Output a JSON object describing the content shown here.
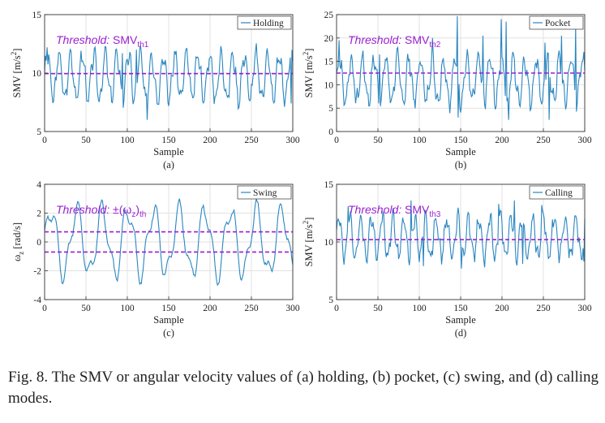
{
  "caption": "Fig. 8.   The SMV or angular velocity values of (a) holding, (b) pocket, (c) swing, and (d) calling modes.",
  "colors": {
    "series": "#2a86c0",
    "threshold": "#9a1fd1",
    "axis": "#333333"
  },
  "chart_data": [
    {
      "type": "line",
      "panel_label": "(a)",
      "legend": "Holding",
      "xlabel": "Sample",
      "ylabel_main": "SMV [m/s",
      "ylabel_sup": "2",
      "ylabel_end": "]",
      "xlim": [
        0,
        300
      ],
      "ylim": [
        5,
        15
      ],
      "xticks": [
        0,
        50,
        100,
        150,
        200,
        250,
        300
      ],
      "yticks": [
        5,
        10,
        15
      ],
      "threshold_prefix": "Threshold:",
      "threshold_label": "SMV",
      "threshold_sub": "th1",
      "thresholds": [
        9.95
      ],
      "signal": {
        "mean": 9.7,
        "amp": 1.9,
        "period": 14,
        "noise": 0.45,
        "seed": 3,
        "spikes": [
          [
            3,
            12.2
          ],
          [
            94,
            11.7
          ],
          [
            111,
            12.0
          ],
          [
            124,
            6.0
          ],
          [
            298,
            7.4
          ]
        ]
      }
    },
    {
      "type": "line",
      "panel_label": "(b)",
      "legend": "Pocket",
      "xlabel": "Sample",
      "ylabel_main": "SMV [m/s",
      "ylabel_sup": "2",
      "ylabel_end": "]",
      "xlim": [
        0,
        300
      ],
      "ylim": [
        0,
        25
      ],
      "xticks": [
        0,
        50,
        100,
        150,
        200,
        250,
        300
      ],
      "yticks": [
        0,
        5,
        10,
        15,
        20,
        25
      ],
      "threshold_prefix": "Threshold:",
      "threshold_label": "SMV",
      "threshold_sub": "th2",
      "thresholds": [
        12.5
      ],
      "signal": {
        "mean": 11.0,
        "amp": 4.5,
        "period": 14,
        "noise": 1.3,
        "seed": 7,
        "spikes": [
          [
            3,
            19.5
          ],
          [
            52,
            16.5
          ],
          [
            116,
            20.0
          ],
          [
            146,
            24.7
          ],
          [
            177,
            20.5
          ],
          [
            199,
            24.0
          ],
          [
            205,
            23.5
          ],
          [
            252,
            19.0
          ],
          [
            272,
            20.5
          ],
          [
            289,
            22.5
          ],
          [
            147,
            3.0
          ],
          [
            208,
            2.5
          ],
          [
            257,
            2.5
          ]
        ]
      }
    },
    {
      "type": "line",
      "panel_label": "(c)",
      "legend": "Swing",
      "xlabel": "Sample",
      "ylabel_main": "ω",
      "ylabel_sub": "z",
      "ylabel_end": " [rad/s]",
      "xlim": [
        0,
        300
      ],
      "ylim": [
        -4,
        4
      ],
      "xticks": [
        0,
        50,
        100,
        150,
        200,
        250,
        300
      ],
      "yticks": [
        -4,
        -2,
        0,
        2,
        4
      ],
      "threshold_prefix": "Threshold:",
      "threshold_label": "±(ω",
      "threshold_sub": "z",
      "threshold_after": ")",
      "threshold_sub2": "th",
      "thresholds": [
        0.7,
        -0.7
      ],
      "signal": {
        "mean": 0.0,
        "amp": 2.2,
        "period": 31,
        "noise": 0.12,
        "seed": 11,
        "spikes": []
      }
    },
    {
      "type": "line",
      "panel_label": "(d)",
      "legend": "Calling",
      "xlabel": "Sample",
      "ylabel_main": "SMV [m/s",
      "ylabel_sup": "2",
      "ylabel_end": "]",
      "xlim": [
        0,
        300
      ],
      "ylim": [
        5,
        15
      ],
      "xticks": [
        0,
        50,
        100,
        150,
        200,
        250,
        300
      ],
      "yticks": [
        5,
        10,
        15
      ],
      "threshold_prefix": "Threshold:",
      "threshold_label": "SMV",
      "threshold_sub": "th3",
      "thresholds": [
        10.2
      ],
      "signal": {
        "mean": 10.4,
        "amp": 1.7,
        "period": 13,
        "noise": 0.45,
        "seed": 19,
        "spikes": [
          [
            14,
            13.1
          ],
          [
            90,
            13.6
          ],
          [
            196,
            13.3
          ],
          [
            215,
            13.6
          ],
          [
            248,
            13.2
          ],
          [
            105,
            7.9
          ],
          [
            151,
            7.7
          ],
          [
            225,
            8.1
          ],
          [
            299,
            8.3
          ]
        ]
      }
    }
  ]
}
